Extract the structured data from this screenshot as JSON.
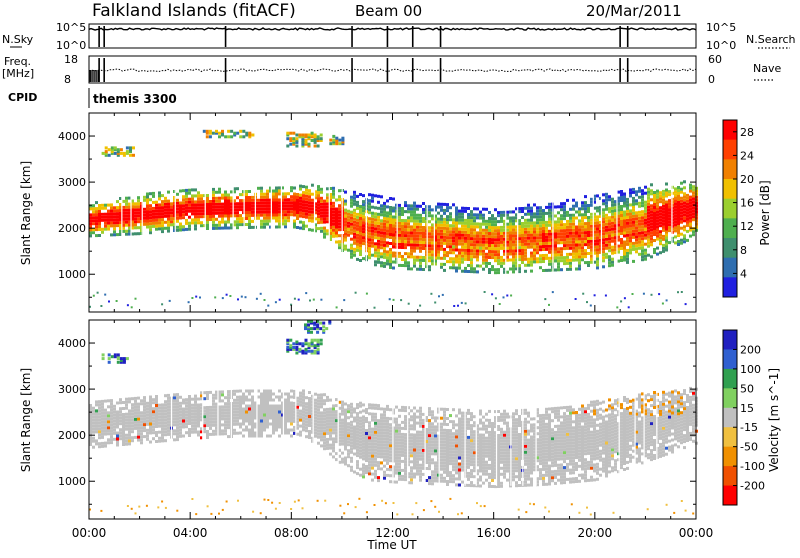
{
  "header": {
    "site": "Falkland Islands (fitACF)",
    "beam": "Beam 00",
    "date": "20/Mar/2011"
  },
  "strips": {
    "nsky_label": "N.Sky",
    "nsky_ticks": [
      "10^5",
      "10^0"
    ],
    "nsearch_label": "N.Search",
    "nsearch_ticks": [
      "10^5",
      "10^0"
    ],
    "freq_label": "Freq.",
    "freq_unit": "[MHz]",
    "freq_ticks": [
      "18",
      "8"
    ],
    "nave_label": "Nave",
    "nave_ticks": [
      "60",
      "0"
    ],
    "cpid_label": "CPID",
    "cpid_value": "themis 3300"
  },
  "colors": {
    "power_scale": [
      "#2020e0",
      "#2f6eb0",
      "#3f8f6e",
      "#4faf4f",
      "#9bcf2f",
      "#f0c000",
      "#f08000",
      "#ff4000",
      "#ff0000"
    ],
    "velocity_scale": [
      "#2020c0",
      "#3060d0",
      "#30a050",
      "#80d060",
      "#c0c0c0",
      "#f0c040",
      "#f09000",
      "#f05000",
      "#ff0000"
    ],
    "ground_scatter": "#c0c0c0"
  },
  "chart_data": [
    {
      "type": "heatmap",
      "name": "power",
      "title": "",
      "ylabel": "Slant Range [km]",
      "xlabel": "Time UT",
      "x_ticks": [
        "00:00",
        "04:00",
        "08:00",
        "12:00",
        "16:00",
        "20:00",
        "00:00"
      ],
      "x_range_hours": [
        0,
        24
      ],
      "y_ticks": [
        1000,
        2000,
        3000,
        4000
      ],
      "ylim": [
        180,
        4500
      ],
      "colorbar_label": "Power [dB]",
      "colorbar_ticks": [
        4,
        8,
        12,
        16,
        20,
        24,
        28
      ],
      "colorbar_range": [
        0,
        30
      ],
      "echo_band": {
        "hours": [
          0,
          2,
          4,
          6,
          8,
          9,
          10,
          11,
          12,
          14,
          16,
          18,
          20,
          22,
          24
        ],
        "lower_km": [
          1800,
          1850,
          1950,
          1980,
          2000,
          1900,
          1400,
          1200,
          1100,
          1050,
          1000,
          1050,
          1100,
          1300,
          1800
        ],
        "upper_km": [
          2500,
          2700,
          2800,
          2850,
          2900,
          2900,
          2800,
          2700,
          2600,
          2500,
          2400,
          2500,
          2700,
          2900,
          3000
        ]
      }
    },
    {
      "type": "heatmap",
      "name": "velocity",
      "title": "",
      "ylabel": "Slant Range [km]",
      "xlabel": "Time UT",
      "x_ticks": [
        "00:00",
        "04:00",
        "08:00",
        "12:00",
        "16:00",
        "20:00",
        "00:00"
      ],
      "x_range_hours": [
        0,
        24
      ],
      "y_ticks": [
        1000,
        2000,
        3000,
        4000
      ],
      "ylim": [
        180,
        4500
      ],
      "colorbar_label": "Velocity [m s^-1]",
      "colorbar_ticks": [
        200,
        100,
        50,
        15,
        -15,
        -50,
        -100,
        -200
      ],
      "colorbar_range": [
        -250,
        250
      ],
      "ground_scatter_band": {
        "hours": [
          0,
          2,
          4,
          6,
          8,
          9,
          10,
          11,
          12,
          14,
          16,
          18,
          20,
          22,
          24
        ],
        "lower_km": [
          1700,
          1800,
          1900,
          1950,
          1950,
          1800,
          1300,
          1000,
          950,
          900,
          850,
          900,
          1000,
          1400,
          1800
        ],
        "upper_km": [
          2700,
          2800,
          2900,
          2950,
          2950,
          2900,
          2700,
          2650,
          2600,
          2550,
          2500,
          2550,
          2700,
          2900,
          3000
        ]
      }
    }
  ]
}
